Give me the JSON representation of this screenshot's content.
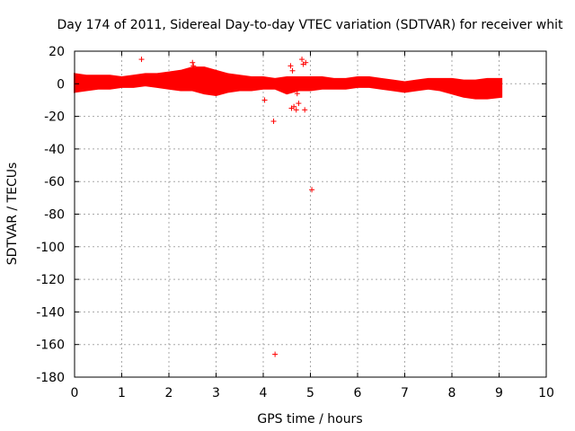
{
  "chart_data": {
    "type": "scatter",
    "title": "Day 174 of 2011, Sidereal Day-to-day VTEC variation (SDTVAR) for receiver whit",
    "xlabel": "GPS time / hours",
    "ylabel": "SDTVAR / TECUs",
    "xlim": [
      0,
      10
    ],
    "ylim": [
      -180,
      20
    ],
    "x_ticks": [
      "0",
      "1",
      "2",
      "3",
      "4",
      "5",
      "6",
      "7",
      "8",
      "9",
      "10"
    ],
    "y_ticks": [
      "20",
      "0",
      "-20",
      "-40",
      "-60",
      "-80",
      "-100",
      "-120",
      "-140",
      "-160",
      "-180"
    ],
    "grid": true,
    "marker": "+",
    "color": "#ff0000",
    "band": [
      {
        "x": 0.0,
        "lo": -5,
        "hi": 6
      },
      {
        "x": 0.25,
        "lo": -4,
        "hi": 5
      },
      {
        "x": 0.5,
        "lo": -3,
        "hi": 5
      },
      {
        "x": 0.75,
        "lo": -3,
        "hi": 5
      },
      {
        "x": 1.0,
        "lo": -2,
        "hi": 4
      },
      {
        "x": 1.25,
        "lo": -2,
        "hi": 5
      },
      {
        "x": 1.5,
        "lo": -1,
        "hi": 6
      },
      {
        "x": 1.75,
        "lo": -2,
        "hi": 6
      },
      {
        "x": 2.0,
        "lo": -3,
        "hi": 7
      },
      {
        "x": 2.25,
        "lo": -4,
        "hi": 8
      },
      {
        "x": 2.5,
        "lo": -4,
        "hi": 10
      },
      {
        "x": 2.75,
        "lo": -6,
        "hi": 10
      },
      {
        "x": 3.0,
        "lo": -7,
        "hi": 8
      },
      {
        "x": 3.25,
        "lo": -5,
        "hi": 6
      },
      {
        "x": 3.5,
        "lo": -4,
        "hi": 5
      },
      {
        "x": 3.75,
        "lo": -4,
        "hi": 4
      },
      {
        "x": 4.0,
        "lo": -3,
        "hi": 4
      },
      {
        "x": 4.25,
        "lo": -3,
        "hi": 3
      },
      {
        "x": 4.5,
        "lo": -6,
        "hi": 4
      },
      {
        "x": 4.75,
        "lo": -4,
        "hi": 4
      },
      {
        "x": 5.0,
        "lo": -4,
        "hi": 4
      },
      {
        "x": 5.25,
        "lo": -3,
        "hi": 4
      },
      {
        "x": 5.5,
        "lo": -3,
        "hi": 3
      },
      {
        "x": 5.75,
        "lo": -3,
        "hi": 3
      },
      {
        "x": 6.0,
        "lo": -2,
        "hi": 4
      },
      {
        "x": 6.25,
        "lo": -2,
        "hi": 4
      },
      {
        "x": 6.5,
        "lo": -3,
        "hi": 3
      },
      {
        "x": 6.75,
        "lo": -4,
        "hi": 2
      },
      {
        "x": 7.0,
        "lo": -5,
        "hi": 1
      },
      {
        "x": 7.25,
        "lo": -4,
        "hi": 2
      },
      {
        "x": 7.5,
        "lo": -3,
        "hi": 3
      },
      {
        "x": 7.75,
        "lo": -4,
        "hi": 3
      },
      {
        "x": 8.0,
        "lo": -6,
        "hi": 3
      },
      {
        "x": 8.25,
        "lo": -8,
        "hi": 2
      },
      {
        "x": 8.5,
        "lo": -9,
        "hi": 2
      },
      {
        "x": 8.75,
        "lo": -9,
        "hi": 3
      },
      {
        "x": 9.05,
        "lo": -8,
        "hi": 3
      }
    ],
    "outliers": [
      {
        "x": 1.42,
        "y": 15
      },
      {
        "x": 2.5,
        "y": 13
      },
      {
        "x": 2.52,
        "y": 11
      },
      {
        "x": 4.03,
        "y": -10
      },
      {
        "x": 4.22,
        "y": -23
      },
      {
        "x": 4.25,
        "y": -166
      },
      {
        "x": 4.58,
        "y": 11
      },
      {
        "x": 4.62,
        "y": 8
      },
      {
        "x": 4.6,
        "y": -15
      },
      {
        "x": 4.65,
        "y": -14
      },
      {
        "x": 4.7,
        "y": -16
      },
      {
        "x": 4.72,
        "y": -6
      },
      {
        "x": 4.75,
        "y": -12
      },
      {
        "x": 4.82,
        "y": 15
      },
      {
        "x": 4.85,
        "y": 12
      },
      {
        "x": 4.9,
        "y": 13
      },
      {
        "x": 4.88,
        "y": -16
      },
      {
        "x": 5.03,
        "y": -65
      }
    ]
  }
}
